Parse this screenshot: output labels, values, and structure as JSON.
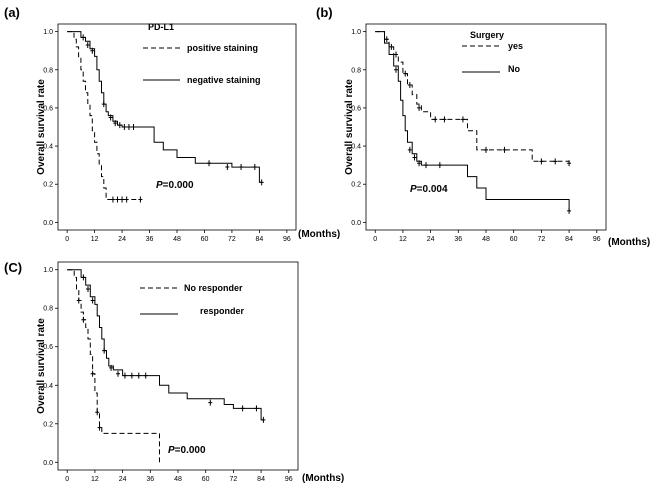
{
  "chart_data": [
    {
      "type": "line",
      "panel_label": "(a)",
      "ylabel": "Overall survival rate",
      "xlabel": "(Months)",
      "xlim": [
        -4,
        100
      ],
      "ylim": [
        -0.04,
        1.04
      ],
      "xticks": [
        "0",
        "12",
        "24",
        "36",
        "48",
        "60",
        "72",
        "84",
        "96"
      ],
      "yticks": [
        "0.0",
        "0.2",
        "0.4",
        "0.6",
        "0.8",
        "1.0"
      ],
      "legend_title": "PD-L1",
      "p_prefix": "P",
      "p_value": "=0.000",
      "series": [
        {
          "name": "positive staining",
          "style": "dashed",
          "points": [
            [
              0,
              1.0
            ],
            [
              2,
              1.0
            ],
            [
              3,
              0.96
            ],
            [
              4,
              0.92
            ],
            [
              5,
              0.86
            ],
            [
              6,
              0.8
            ],
            [
              7,
              0.74
            ],
            [
              8,
              0.68
            ],
            [
              9,
              0.62
            ],
            [
              10,
              0.56
            ],
            [
              11,
              0.48
            ],
            [
              12,
              0.42
            ],
            [
              13,
              0.36
            ],
            [
              14,
              0.3
            ],
            [
              15,
              0.24
            ],
            [
              16,
              0.18
            ],
            [
              17,
              0.12
            ],
            [
              32,
              0.12
            ]
          ],
          "censors": [
            [
              20,
              0.12
            ],
            [
              22,
              0.12
            ],
            [
              24,
              0.12
            ],
            [
              26,
              0.12
            ],
            [
              32,
              0.12
            ]
          ]
        },
        {
          "name": "negative staining",
          "style": "solid",
          "points": [
            [
              0,
              1.0
            ],
            [
              5,
              1.0
            ],
            [
              6,
              0.97
            ],
            [
              8,
              0.95
            ],
            [
              10,
              0.91
            ],
            [
              12,
              0.87
            ],
            [
              13,
              0.8
            ],
            [
              14,
              0.74
            ],
            [
              15,
              0.68
            ],
            [
              16,
              0.62
            ],
            [
              17,
              0.58
            ],
            [
              18,
              0.56
            ],
            [
              20,
              0.53
            ],
            [
              22,
              0.51
            ],
            [
              24,
              0.5
            ],
            [
              36,
              0.5
            ],
            [
              38,
              0.42
            ],
            [
              42,
              0.38
            ],
            [
              48,
              0.34
            ],
            [
              56,
              0.31
            ],
            [
              72,
              0.29
            ],
            [
              84,
              0.21
            ],
            [
              85,
              0.21
            ]
          ],
          "censors": [
            [
              7,
              0.97
            ],
            [
              9,
              0.93
            ],
            [
              11,
              0.9
            ],
            [
              16,
              0.62
            ],
            [
              19,
              0.55
            ],
            [
              21,
              0.52
            ],
            [
              23,
              0.51
            ],
            [
              25,
              0.5
            ],
            [
              27,
              0.5
            ],
            [
              29,
              0.5
            ],
            [
              62,
              0.31
            ],
            [
              70,
              0.29
            ],
            [
              76,
              0.29
            ],
            [
              82,
              0.29
            ],
            [
              85,
              0.21
            ]
          ]
        }
      ]
    },
    {
      "type": "line",
      "panel_label": "(b)",
      "ylabel": "Overall survival rate",
      "xlabel": "(Months)",
      "xlim": [
        -4,
        100
      ],
      "ylim": [
        -0.04,
        1.04
      ],
      "xticks": [
        "0",
        "12",
        "24",
        "36",
        "48",
        "60",
        "72",
        "84",
        "96"
      ],
      "yticks": [
        "0.0",
        "0.2",
        "0.4",
        "0.6",
        "0.8",
        "1.0"
      ],
      "legend_title": "Surgery",
      "p_prefix": "P",
      "p_value": "=0.004",
      "series": [
        {
          "name": "yes",
          "style": "dashed",
          "points": [
            [
              0,
              1.0
            ],
            [
              3,
              1.0
            ],
            [
              4,
              0.96
            ],
            [
              6,
              0.92
            ],
            [
              8,
              0.88
            ],
            [
              10,
              0.84
            ],
            [
              12,
              0.78
            ],
            [
              14,
              0.72
            ],
            [
              16,
              0.67
            ],
            [
              18,
              0.62
            ],
            [
              20,
              0.58
            ],
            [
              24,
              0.54
            ],
            [
              34,
              0.54
            ],
            [
              40,
              0.48
            ],
            [
              44,
              0.38
            ],
            [
              64,
              0.38
            ],
            [
              68,
              0.32
            ],
            [
              84,
              0.31
            ]
          ],
          "censors": [
            [
              5,
              0.96
            ],
            [
              7,
              0.92
            ],
            [
              9,
              0.88
            ],
            [
              13,
              0.78
            ],
            [
              15,
              0.72
            ],
            [
              19,
              0.6
            ],
            [
              26,
              0.54
            ],
            [
              30,
              0.54
            ],
            [
              38,
              0.54
            ],
            [
              48,
              0.38
            ],
            [
              56,
              0.38
            ],
            [
              72,
              0.32
            ],
            [
              78,
              0.32
            ],
            [
              84,
              0.31
            ]
          ]
        },
        {
          "name": "No",
          "style": "solid",
          "points": [
            [
              0,
              1.0
            ],
            [
              2,
              1.0
            ],
            [
              4,
              0.94
            ],
            [
              6,
              0.88
            ],
            [
              8,
              0.82
            ],
            [
              10,
              0.74
            ],
            [
              11,
              0.64
            ],
            [
              12,
              0.56
            ],
            [
              13,
              0.48
            ],
            [
              14,
              0.42
            ],
            [
              16,
              0.36
            ],
            [
              18,
              0.32
            ],
            [
              20,
              0.3
            ],
            [
              36,
              0.3
            ],
            [
              40,
              0.24
            ],
            [
              44,
              0.18
            ],
            [
              48,
              0.12
            ],
            [
              80,
              0.12
            ],
            [
              84,
              0.06
            ]
          ],
          "censors": [
            [
              9,
              0.8
            ],
            [
              15,
              0.38
            ],
            [
              17,
              0.34
            ],
            [
              19,
              0.31
            ],
            [
              22,
              0.3
            ],
            [
              28,
              0.3
            ],
            [
              84,
              0.06
            ]
          ]
        }
      ]
    },
    {
      "type": "line",
      "panel_label": "(C)",
      "ylabel": "Overall survival rate",
      "xlabel": "(Months)",
      "xlim": [
        -4,
        100
      ],
      "ylim": [
        -0.04,
        1.04
      ],
      "xticks": [
        "0",
        "12",
        "24",
        "36",
        "48",
        "60",
        "72",
        "84",
        "96"
      ],
      "yticks": [
        "0.0",
        "0.2",
        "0.4",
        "0.6",
        "0.8",
        "1.0"
      ],
      "legend_title": "",
      "p_prefix": "P",
      "p_value": "=0.000",
      "series": [
        {
          "name": "No responder",
          "style": "dashed",
          "points": [
            [
              0,
              1.0
            ],
            [
              2,
              1.0
            ],
            [
              3,
              0.96
            ],
            [
              4,
              0.9
            ],
            [
              5,
              0.84
            ],
            [
              6,
              0.78
            ],
            [
              7,
              0.74
            ],
            [
              8,
              0.7
            ],
            [
              9,
              0.64
            ],
            [
              10,
              0.56
            ],
            [
              11,
              0.46
            ],
            [
              12,
              0.36
            ],
            [
              13,
              0.26
            ],
            [
              14,
              0.18
            ],
            [
              15,
              0.15
            ],
            [
              39,
              0.15
            ],
            [
              40,
              0.0
            ]
          ],
          "censors": [
            [
              5,
              0.84
            ],
            [
              7,
              0.74
            ],
            [
              11,
              0.46
            ],
            [
              13,
              0.26
            ],
            [
              14,
              0.18
            ]
          ]
        },
        {
          "name": "responder",
          "style": "solid",
          "points": [
            [
              0,
              1.0
            ],
            [
              5,
              1.0
            ],
            [
              6,
              0.96
            ],
            [
              8,
              0.92
            ],
            [
              10,
              0.86
            ],
            [
              12,
              0.82
            ],
            [
              13,
              0.76
            ],
            [
              14,
              0.7
            ],
            [
              15,
              0.64
            ],
            [
              16,
              0.58
            ],
            [
              17,
              0.54
            ],
            [
              18,
              0.5
            ],
            [
              20,
              0.48
            ],
            [
              24,
              0.45
            ],
            [
              36,
              0.45
            ],
            [
              40,
              0.4
            ],
            [
              44,
              0.36
            ],
            [
              52,
              0.33
            ],
            [
              68,
              0.3
            ],
            [
              72,
              0.28
            ],
            [
              84,
              0.22
            ],
            [
              85,
              0.22
            ]
          ],
          "censors": [
            [
              7,
              0.96
            ],
            [
              9,
              0.9
            ],
            [
              11,
              0.84
            ],
            [
              16,
              0.58
            ],
            [
              19,
              0.49
            ],
            [
              22,
              0.46
            ],
            [
              25,
              0.45
            ],
            [
              28,
              0.45
            ],
            [
              31,
              0.45
            ],
            [
              34,
              0.45
            ],
            [
              62,
              0.31
            ],
            [
              76,
              0.28
            ],
            [
              82,
              0.28
            ],
            [
              85,
              0.22
            ]
          ]
        }
      ]
    }
  ]
}
